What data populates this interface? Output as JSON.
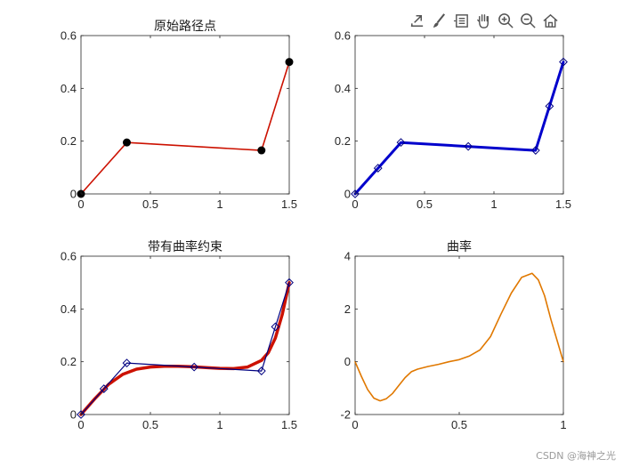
{
  "toolbar": {
    "icons": [
      "export-icon",
      "brush-icon",
      "datatip-icon",
      "pan-hand-icon",
      "zoom-in-icon",
      "zoom-out-icon",
      "home-icon"
    ]
  },
  "watermark": "CSDN @海神之光",
  "colors": {
    "red": "#cc1100",
    "blue": "#0000cc",
    "navy": "#000080",
    "orange": "#e07800",
    "black": "#000000"
  },
  "chart_data": [
    {
      "type": "line",
      "title": "原始路径点",
      "xlim": [
        0,
        1.5
      ],
      "ylim": [
        0,
        0.6
      ],
      "xticks": [
        0,
        0.5,
        1,
        1.5
      ],
      "xtick_labels": [
        "0",
        "0.5",
        "1",
        "1.5"
      ],
      "yticks": [
        0,
        0.2,
        0.4,
        0.6
      ],
      "ytick_labels": [
        "0",
        "0.2",
        "0.4",
        "0.6"
      ],
      "series": [
        {
          "style": "line",
          "color": "red",
          "width": 1.6,
          "x": [
            0,
            0.33,
            1.3,
            1.5
          ],
          "y": [
            0,
            0.195,
            0.165,
            0.5
          ]
        },
        {
          "style": "dot",
          "color": "black",
          "x": [
            0,
            0.33,
            1.3,
            1.5
          ],
          "y": [
            0,
            0.195,
            0.165,
            0.5
          ]
        }
      ]
    },
    {
      "type": "line",
      "title": "",
      "xlim": [
        0,
        1.5
      ],
      "ylim": [
        0,
        0.6
      ],
      "xticks": [
        0,
        0.5,
        1,
        1.5
      ],
      "xtick_labels": [
        "0",
        "0.5",
        "1",
        "1.5"
      ],
      "yticks": [
        0,
        0.2,
        0.4,
        0.6
      ],
      "ytick_labels": [
        "0",
        "0.2",
        "0.4",
        "0.6"
      ],
      "series": [
        {
          "style": "line",
          "color": "blue",
          "width": 3,
          "x": [
            0,
            0.33,
            1.3,
            1.5
          ],
          "y": [
            0,
            0.195,
            0.165,
            0.5
          ]
        },
        {
          "style": "diamond",
          "color": "navy",
          "x": [
            0,
            0.165,
            0.33,
            0.815,
            1.3,
            1.4,
            1.5
          ],
          "y": [
            0,
            0.0975,
            0.195,
            0.18,
            0.165,
            0.3325,
            0.5
          ]
        }
      ]
    },
    {
      "type": "line",
      "title": "带有曲率约束",
      "xlim": [
        0,
        1.5
      ],
      "ylim": [
        0,
        0.6
      ],
      "xticks": [
        0,
        0.5,
        1,
        1.5
      ],
      "xtick_labels": [
        "0",
        "0.5",
        "1",
        "1.5"
      ],
      "yticks": [
        0,
        0.2,
        0.4,
        0.6
      ],
      "ytick_labels": [
        "0",
        "0.2",
        "0.4",
        "0.6"
      ],
      "series": [
        {
          "style": "line",
          "color": "red",
          "width": 3.5,
          "x": [
            0,
            0.1,
            0.2,
            0.3,
            0.4,
            0.5,
            0.6,
            0.7,
            0.8,
            0.9,
            1.0,
            1.1,
            1.2,
            1.3,
            1.35,
            1.4,
            1.45,
            1.5
          ],
          "y": [
            0,
            0.06,
            0.115,
            0.152,
            0.172,
            0.18,
            0.183,
            0.183,
            0.181,
            0.178,
            0.175,
            0.174,
            0.18,
            0.205,
            0.235,
            0.29,
            0.38,
            0.5
          ]
        },
        {
          "style": "line",
          "color": "navy",
          "width": 1.2,
          "x": [
            0,
            0.165,
            0.33,
            0.815,
            1.3,
            1.4,
            1.5
          ],
          "y": [
            0,
            0.0975,
            0.195,
            0.18,
            0.165,
            0.3325,
            0.5
          ]
        },
        {
          "style": "diamond",
          "color": "navy",
          "x": [
            0,
            0.165,
            0.33,
            0.815,
            1.3,
            1.4,
            1.5
          ],
          "y": [
            0,
            0.0975,
            0.195,
            0.18,
            0.165,
            0.3325,
            0.5
          ]
        }
      ]
    },
    {
      "type": "line",
      "title": "曲率",
      "xlim": [
        0,
        1
      ],
      "ylim": [
        -2,
        4
      ],
      "xticks": [
        0,
        0.5,
        1
      ],
      "xtick_labels": [
        "0",
        "0.5",
        "1"
      ],
      "yticks": [
        -2,
        0,
        2,
        4
      ],
      "ytick_labels": [
        "-2",
        "0",
        "2",
        "4"
      ],
      "series": [
        {
          "style": "line",
          "color": "orange",
          "width": 1.6,
          "x": [
            0,
            0.03,
            0.06,
            0.09,
            0.12,
            0.15,
            0.18,
            0.21,
            0.24,
            0.27,
            0.3,
            0.35,
            0.4,
            0.45,
            0.5,
            0.55,
            0.6,
            0.65,
            0.7,
            0.75,
            0.8,
            0.85,
            0.88,
            0.91,
            0.94,
            0.97,
            1.0
          ],
          "y": [
            0,
            -0.55,
            -1.05,
            -1.38,
            -1.48,
            -1.4,
            -1.2,
            -0.9,
            -0.6,
            -0.38,
            -0.28,
            -0.18,
            -0.1,
            0,
            0.08,
            0.22,
            0.45,
            0.95,
            1.8,
            2.6,
            3.2,
            3.35,
            3.1,
            2.5,
            1.6,
            0.8,
            0
          ]
        }
      ]
    }
  ]
}
